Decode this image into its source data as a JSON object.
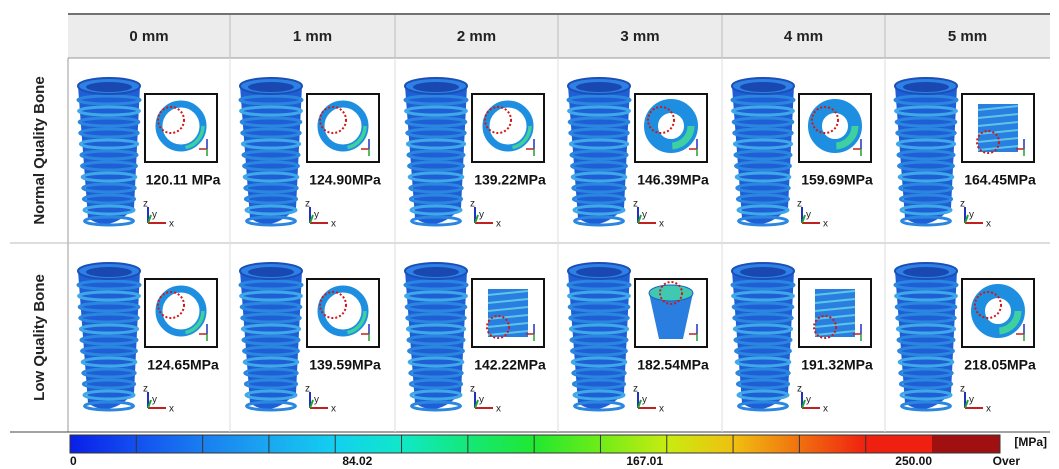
{
  "columns": [
    "0 mm",
    "1 mm",
    "2 mm",
    "3 mm",
    "4 mm",
    "5 mm"
  ],
  "rows": [
    {
      "label": "Normal Quality Bone",
      "cells": [
        "120.11 MPa",
        "124.90MPa",
        "139.22MPa",
        "146.39MPa",
        "159.69MPa",
        "164.45MPa"
      ]
    },
    {
      "label": "Low Quality Bone",
      "cells": [
        "124.65MPa",
        "139.59MPa",
        "142.22MPa",
        "182.54MPa",
        "191.32MPa",
        "218.05MPa"
      ]
    }
  ],
  "axis_labels": [
    "z",
    "y",
    "x"
  ],
  "colorbar": {
    "unit": "[MPa]",
    "ticks": [
      "0",
      "84.02",
      "167.01",
      "250.00"
    ],
    "over": "Over"
  }
}
